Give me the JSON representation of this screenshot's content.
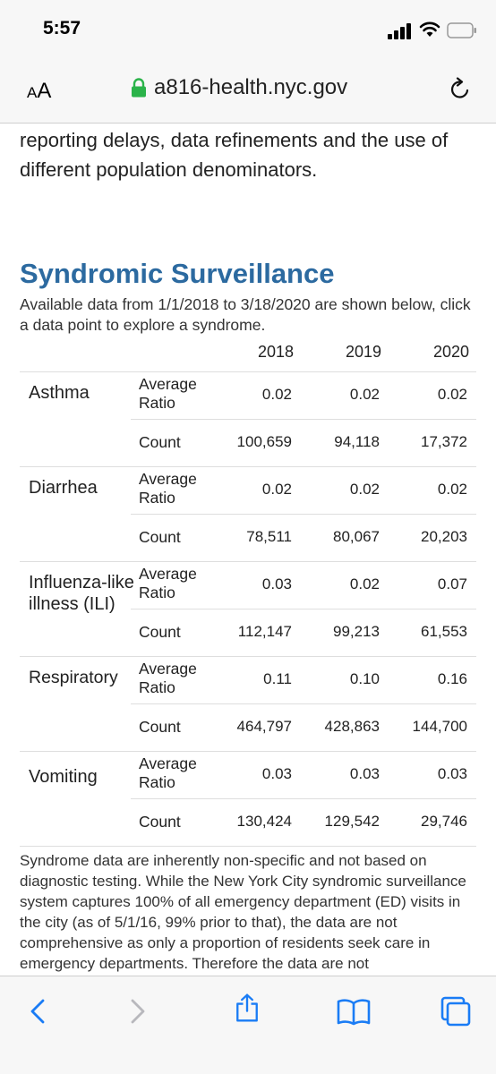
{
  "status_bar": {
    "time": "5:57"
  },
  "browser": {
    "text_size_label_small": "A",
    "text_size_label_large": "A",
    "url": "a816-health.nyc.gov"
  },
  "page": {
    "intro_text": "reporting delays, data refinements and the use of different population denominators.",
    "section_title": "Syndromic Surveillance",
    "section_desc": "Available data from 1/1/2018 to 3/18/2020 are shown below, click a data point to explore a syndrome.",
    "years": [
      "2018",
      "2019",
      "2020"
    ],
    "groups": [
      {
        "name": "Asthma",
        "avg_label": "Average Ratio",
        "count_label": "Count",
        "avg": [
          "0.02",
          "0.02",
          "0.02"
        ],
        "count": [
          "100,659",
          "94,118",
          "17,372"
        ]
      },
      {
        "name": "Diarrhea",
        "avg_label": "Average Ratio",
        "count_label": "Count",
        "avg": [
          "0.02",
          "0.02",
          "0.02"
        ],
        "count": [
          "78,511",
          "80,067",
          "20,203"
        ]
      },
      {
        "name": "Influenza-like illness (ILI)",
        "avg_label": "Average Ratio",
        "count_label": "Count",
        "avg": [
          "0.03",
          "0.02",
          "0.07"
        ],
        "count": [
          "112,147",
          "99,213",
          "61,553"
        ]
      },
      {
        "name": "Respiratory",
        "avg_label": "Average Ratio",
        "count_label": "Count",
        "avg": [
          "0.11",
          "0.10",
          "0.16"
        ],
        "count": [
          "464,797",
          "428,863",
          "144,700"
        ]
      },
      {
        "name": "Vomiting",
        "avg_label": "Average Ratio",
        "count_label": "Count",
        "avg": [
          "0.03",
          "0.03",
          "0.03"
        ],
        "count": [
          "130,424",
          "129,542",
          "29,746"
        ]
      }
    ],
    "footer_text": "Syndrome data are inherently non-specific and not based on diagnostic testing. While the New York City syndromic surveillance system captures 100% of all emergency department (ED) visits in the city (as of 5/1/16, 99% prior to that), the data are not comprehensive as only a proportion of residents seek care in emergency departments. Therefore the data are not"
  },
  "toolbar": {
    "icons": [
      "back-icon",
      "forward-icon",
      "share-icon",
      "bookmarks-icon",
      "tabs-icon"
    ]
  },
  "colors": {
    "accent": "#2c6aa0",
    "ios_blue": "#1a7cf5",
    "disabled": "#b8b8bd"
  }
}
